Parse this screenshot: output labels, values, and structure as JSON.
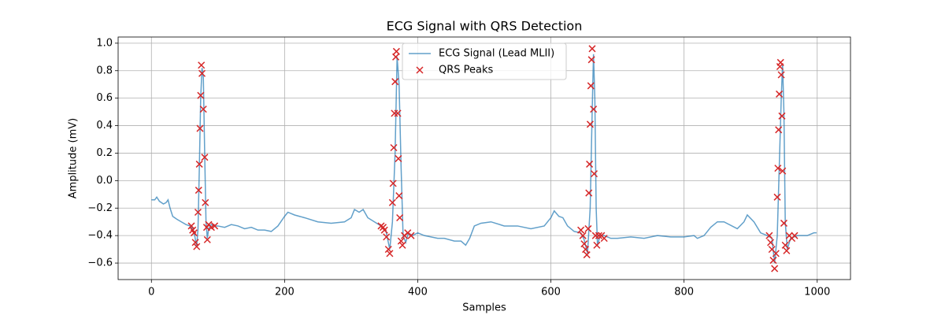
{
  "chart_data": {
    "type": "line",
    "title": "ECG Signal with QRS Detection",
    "x_label": "Samples",
    "y_label": "Amplitude (mV)",
    "xlim": [
      -50,
      1050
    ],
    "ylim": [
      -0.72,
      1.045
    ],
    "xticks": [
      0,
      200,
      400,
      600,
      800,
      1000
    ],
    "yticks": [
      {
        "value": -0.6,
        "label": "−0.6"
      },
      {
        "value": -0.4,
        "label": "−0.4"
      },
      {
        "value": -0.2,
        "label": "−0.2"
      },
      {
        "value": 0,
        "label": "0.0"
      },
      {
        "value": 0.2,
        "label": "0.2"
      },
      {
        "value": 0.4,
        "label": "0.4"
      },
      {
        "value": 0.6,
        "label": "0.6"
      },
      {
        "value": 0.8,
        "label": "0.8"
      },
      {
        "value": 1,
        "label": "1.0"
      }
    ],
    "grid": true,
    "legend": "upper center",
    "series": [
      {
        "name": "ECG Signal (Lead MLII)",
        "type": "line",
        "color": "#1f77b4",
        "x": [
          0,
          5,
          8,
          12,
          18,
          22,
          25,
          28,
          32,
          38,
          45,
          52,
          58,
          62,
          65,
          68,
          70,
          72,
          74,
          76,
          78,
          80,
          82,
          84,
          86,
          90,
          95,
          100,
          110,
          120,
          130,
          140,
          150,
          160,
          170,
          180,
          190,
          200,
          205,
          215,
          230,
          250,
          270,
          290,
          300,
          305,
          312,
          318,
          325,
          335,
          345,
          352,
          358,
          362,
          366,
          369,
          372,
          375,
          378,
          382,
          386,
          392,
          400,
          410,
          420,
          430,
          440,
          455,
          465,
          472,
          478,
          485,
          495,
          510,
          530,
          550,
          570,
          590,
          600,
          605,
          612,
          618,
          625,
          635,
          645,
          650,
          655,
          659,
          662,
          664,
          666,
          668,
          670,
          674,
          680,
          690,
          700,
          720,
          740,
          760,
          780,
          800,
          815,
          820,
          830,
          840,
          850,
          860,
          880,
          890,
          895,
          905,
          915,
          925,
          932,
          936,
          940,
          943,
          946,
          948,
          950,
          952,
          955,
          960,
          970,
          985,
          995,
          999
        ],
        "values": [
          -0.14,
          -0.14,
          -0.12,
          -0.15,
          -0.17,
          -0.16,
          -0.14,
          -0.2,
          -0.26,
          -0.28,
          -0.3,
          -0.32,
          -0.33,
          -0.35,
          -0.4,
          -0.48,
          -0.35,
          0.1,
          0.6,
          0.82,
          0.75,
          0.2,
          -0.3,
          -0.42,
          -0.35,
          -0.32,
          -0.33,
          -0.33,
          -0.34,
          -0.32,
          -0.33,
          -0.35,
          -0.34,
          -0.36,
          -0.36,
          -0.37,
          -0.33,
          -0.26,
          -0.23,
          -0.25,
          -0.27,
          -0.3,
          -0.31,
          -0.3,
          -0.27,
          -0.21,
          -0.23,
          -0.21,
          -0.27,
          -0.3,
          -0.33,
          -0.36,
          -0.5,
          -0.3,
          0.2,
          0.9,
          0.7,
          0.1,
          -0.4,
          -0.45,
          -0.38,
          -0.4,
          -0.38,
          -0.4,
          -0.41,
          -0.42,
          -0.42,
          -0.44,
          -0.44,
          -0.47,
          -0.42,
          -0.33,
          -0.31,
          -0.3,
          -0.33,
          -0.33,
          -0.35,
          -0.33,
          -0.27,
          -0.22,
          -0.26,
          -0.27,
          -0.33,
          -0.37,
          -0.38,
          -0.43,
          -0.53,
          -0.2,
          0.5,
          0.92,
          0.6,
          -0.2,
          -0.47,
          -0.4,
          -0.4,
          -0.42,
          -0.42,
          -0.41,
          -0.42,
          -0.4,
          -0.41,
          -0.41,
          -0.4,
          -0.42,
          -0.4,
          -0.34,
          -0.3,
          -0.3,
          -0.35,
          -0.3,
          -0.25,
          -0.3,
          -0.38,
          -0.4,
          -0.42,
          -0.6,
          -0.4,
          0.1,
          0.6,
          0.85,
          0.5,
          -0.3,
          -0.5,
          -0.42,
          -0.4,
          -0.4,
          -0.38,
          -0.38
        ]
      },
      {
        "name": "QRS Peaks",
        "type": "scatter",
        "color": "#d62728",
        "x": [
          60,
          62,
          64,
          66,
          68,
          70,
          71,
          72,
          73,
          74,
          75,
          76,
          78,
          80,
          81,
          83,
          84,
          86,
          90,
          95,
          345,
          348,
          350,
          353,
          356,
          358,
          362,
          363,
          364,
          365,
          366,
          367,
          368,
          370,
          371,
          372,
          373,
          375,
          377,
          380,
          385,
          390,
          645,
          648,
          650,
          652,
          654,
          656,
          657,
          658,
          659,
          660,
          661,
          662,
          664,
          665,
          667,
          669,
          672,
          676,
          680,
          928,
          930,
          932,
          934,
          936,
          938,
          940,
          941,
          942,
          943,
          944,
          945,
          946,
          947,
          948,
          950,
          952,
          954,
          958,
          962,
          966
        ],
        "values": [
          -0.33,
          -0.36,
          -0.38,
          -0.45,
          -0.48,
          -0.23,
          -0.07,
          0.12,
          0.38,
          0.62,
          0.84,
          0.78,
          0.52,
          0.17,
          -0.16,
          -0.34,
          -0.43,
          -0.32,
          -0.34,
          -0.33,
          -0.33,
          -0.34,
          -0.36,
          -0.41,
          -0.5,
          -0.53,
          -0.16,
          -0.02,
          0.24,
          0.49,
          0.72,
          0.9,
          0.94,
          0.49,
          0.16,
          -0.11,
          -0.27,
          -0.44,
          -0.47,
          -0.4,
          -0.38,
          -0.4,
          -0.36,
          -0.4,
          -0.46,
          -0.5,
          -0.54,
          -0.35,
          -0.09,
          0.12,
          0.41,
          0.69,
          0.88,
          0.96,
          0.52,
          0.05,
          -0.4,
          -0.47,
          -0.4,
          -0.4,
          -0.42,
          -0.4,
          -0.45,
          -0.5,
          -0.58,
          -0.64,
          -0.53,
          -0.12,
          0.09,
          0.37,
          0.63,
          0.83,
          0.86,
          0.77,
          0.47,
          0.07,
          -0.31,
          -0.47,
          -0.51,
          -0.4,
          -0.42,
          -0.4
        ]
      }
    ]
  }
}
